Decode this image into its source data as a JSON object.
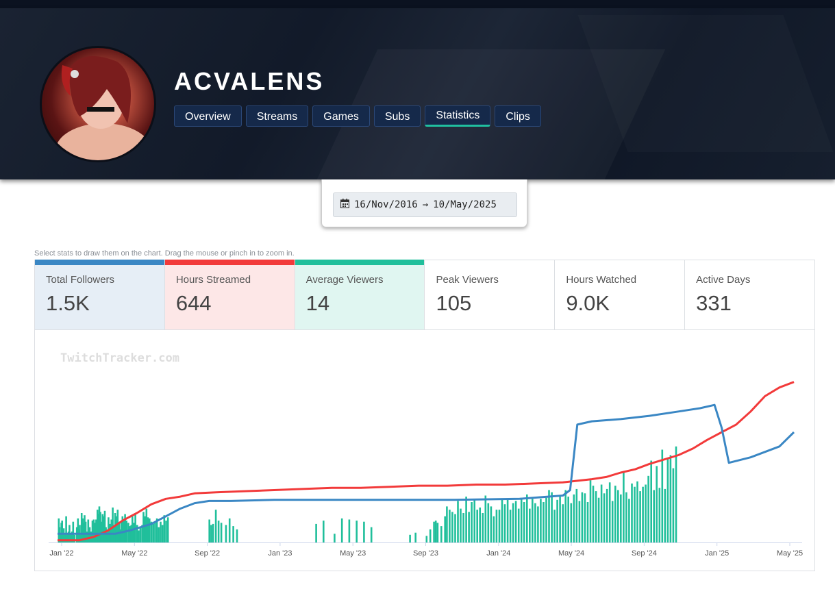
{
  "channel": {
    "name": "ACVALENS"
  },
  "nav": {
    "tabs": [
      "Overview",
      "Streams",
      "Games",
      "Subs",
      "Statistics",
      "Clips"
    ],
    "active": "Statistics"
  },
  "date_range": {
    "start": "16/Nov/2016",
    "arrow": "→",
    "end": "10/May/2025"
  },
  "hint": "Select stats to draw them on the chart. Drag the mouse or pinch in to zoom in.",
  "stats": [
    {
      "label": "Total Followers",
      "value": "1.5K",
      "color": "#3a87c4",
      "bg": "#e6eef6"
    },
    {
      "label": "Hours Streamed",
      "value": "644",
      "color": "#f23a3a",
      "bg": "#fde7e7"
    },
    {
      "label": "Average Viewers",
      "value": "14",
      "color": "#20bf9b",
      "bg": "#e0f6f1"
    },
    {
      "label": "Peak Viewers",
      "value": "105",
      "color": "",
      "bg": "#ffffff"
    },
    {
      "label": "Hours Watched",
      "value": "9.0K",
      "color": "",
      "bg": "#ffffff"
    },
    {
      "label": "Active Days",
      "value": "331",
      "color": "",
      "bg": "#ffffff"
    }
  ],
  "watermark": "TwitchTracker.com",
  "chart_data": {
    "type": "bar+line",
    "x_start": "2022-01",
    "x_end": "2025-05",
    "xtick_labels": [
      "Jan '22",
      "May '22",
      "Sep '22",
      "Jan '23",
      "May '23",
      "Sep '23",
      "Jan '24",
      "May '24",
      "Sep '24",
      "Jan '25",
      "May '25"
    ],
    "grid": false,
    "series": [
      {
        "kind": "bar",
        "color": "#20bf9b",
        "values_per_stream": [
          [
            0.02,
            22
          ],
          [
            0.06,
            14
          ],
          [
            0.12,
            9
          ],
          [
            0.16,
            18
          ],
          [
            0.2,
            20
          ],
          [
            0.25,
            11
          ],
          [
            0.29,
            13
          ],
          [
            0.35,
            8
          ],
          [
            0.42,
            24
          ],
          [
            0.48,
            8
          ],
          [
            0.55,
            10
          ],
          [
            0.6,
            16
          ],
          [
            0.65,
            8
          ],
          [
            0.74,
            10
          ],
          [
            0.8,
            19
          ],
          [
            0.88,
            7
          ],
          [
            1.0,
            14
          ],
          [
            1.06,
            22
          ],
          [
            1.1,
            12
          ],
          [
            1.16,
            16
          ],
          [
            1.2,
            7
          ],
          [
            1.26,
            27
          ],
          [
            1.32,
            22
          ],
          [
            1.38,
            18
          ],
          [
            1.42,
            25
          ],
          [
            1.48,
            19
          ],
          [
            1.55,
            10
          ],
          [
            1.62,
            21
          ],
          [
            1.7,
            14
          ],
          [
            1.78,
            10
          ],
          [
            1.85,
            20
          ],
          [
            1.92,
            21
          ],
          [
            1.98,
            18
          ],
          [
            2.05,
            21
          ],
          [
            2.12,
            30
          ],
          [
            2.17,
            26
          ],
          [
            2.22,
            33
          ],
          [
            2.28,
            28
          ],
          [
            2.34,
            19
          ],
          [
            2.4,
            26
          ],
          [
            2.46,
            24
          ],
          [
            2.52,
            29
          ],
          [
            2.58,
            14
          ],
          [
            2.65,
            12
          ],
          [
            2.72,
            23
          ],
          [
            2.8,
            17
          ],
          [
            2.88,
            21
          ],
          [
            2.95,
            32
          ],
          [
            3.02,
            16
          ],
          [
            3.08,
            27
          ],
          [
            3.16,
            24
          ],
          [
            3.22,
            30
          ],
          [
            3.3,
            18
          ],
          [
            3.36,
            12
          ],
          [
            3.42,
            19
          ],
          [
            3.48,
            24
          ],
          [
            3.55,
            21
          ],
          [
            3.62,
            26
          ],
          [
            3.7,
            20
          ],
          [
            3.8,
            18
          ],
          [
            3.88,
            15
          ],
          [
            3.96,
            16
          ],
          [
            4.02,
            24
          ],
          [
            4.1,
            18
          ],
          [
            4.18,
            27
          ],
          [
            4.28,
            16
          ],
          [
            4.36,
            11
          ],
          [
            4.45,
            14
          ],
          [
            4.55,
            16
          ],
          [
            4.62,
            28
          ],
          [
            4.7,
            24
          ],
          [
            4.78,
            31
          ],
          [
            4.86,
            23
          ],
          [
            4.95,
            22
          ],
          [
            5.05,
            19
          ],
          [
            5.15,
            17
          ],
          [
            5.25,
            19
          ],
          [
            5.35,
            22
          ],
          [
            5.45,
            14
          ],
          [
            5.55,
            19
          ],
          [
            5.65,
            16
          ],
          [
            5.75,
            25
          ],
          [
            5.85,
            20
          ],
          [
            5.95,
            23
          ],
          [
            8.2,
            21
          ],
          [
            8.3,
            16
          ],
          [
            8.4,
            17
          ],
          [
            8.55,
            30
          ],
          [
            8.7,
            20
          ],
          [
            8.85,
            18
          ],
          [
            9.1,
            16
          ],
          [
            9.3,
            22
          ],
          [
            9.5,
            15
          ],
          [
            9.7,
            12
          ],
          [
            14.0,
            17
          ],
          [
            14.4,
            20
          ],
          [
            15.0,
            8
          ],
          [
            15.4,
            22
          ],
          [
            15.8,
            21
          ],
          [
            16.2,
            20
          ],
          [
            16.6,
            19
          ],
          [
            17.0,
            14
          ],
          [
            19.1,
            7
          ],
          [
            19.4,
            9
          ],
          [
            20.0,
            6
          ],
          [
            20.2,
            12
          ],
          [
            20.4,
            19
          ],
          [
            20.5,
            20
          ],
          [
            20.6,
            18
          ],
          [
            20.8,
            15
          ],
          [
            21.0,
            24
          ],
          [
            21.1,
            33
          ],
          [
            21.25,
            30
          ],
          [
            21.4,
            28
          ],
          [
            21.55,
            26
          ],
          [
            21.7,
            38
          ],
          [
            21.85,
            31
          ],
          [
            22.0,
            27
          ],
          [
            22.15,
            42
          ],
          [
            22.3,
            28
          ],
          [
            22.45,
            37
          ],
          [
            22.6,
            39
          ],
          [
            22.75,
            30
          ],
          [
            22.9,
            32
          ],
          [
            23.05,
            27
          ],
          [
            23.2,
            43
          ],
          [
            23.35,
            36
          ],
          [
            23.5,
            33
          ],
          [
            23.65,
            24
          ],
          [
            23.8,
            30
          ],
          [
            23.95,
            30
          ],
          [
            24.1,
            39
          ],
          [
            24.25,
            35
          ],
          [
            24.4,
            40
          ],
          [
            24.55,
            30
          ],
          [
            24.7,
            36
          ],
          [
            24.85,
            38
          ],
          [
            25.0,
            31
          ],
          [
            25.15,
            41
          ],
          [
            25.3,
            37
          ],
          [
            25.45,
            44
          ],
          [
            25.6,
            31
          ],
          [
            25.75,
            40
          ],
          [
            25.9,
            36
          ],
          [
            26.05,
            33
          ],
          [
            26.2,
            40
          ],
          [
            26.35,
            37
          ],
          [
            26.5,
            41
          ],
          [
            26.65,
            48
          ],
          [
            26.8,
            46
          ],
          [
            26.95,
            30
          ],
          [
            27.1,
            39
          ],
          [
            27.25,
            42
          ],
          [
            27.4,
            35
          ],
          [
            27.55,
            48
          ],
          [
            27.7,
            42
          ],
          [
            27.85,
            36
          ],
          [
            28.0,
            44
          ],
          [
            28.15,
            49
          ],
          [
            28.3,
            38
          ],
          [
            28.45,
            46
          ],
          [
            28.6,
            45
          ],
          [
            28.75,
            37
          ],
          [
            28.9,
            57
          ],
          [
            29.05,
            52
          ],
          [
            29.2,
            47
          ],
          [
            29.35,
            41
          ],
          [
            29.5,
            53
          ],
          [
            29.65,
            45
          ],
          [
            29.8,
            49
          ],
          [
            29.95,
            55
          ],
          [
            30.1,
            38
          ],
          [
            30.25,
            52
          ],
          [
            30.4,
            48
          ],
          [
            30.55,
            44
          ],
          [
            30.7,
            64
          ],
          [
            30.85,
            46
          ],
          [
            31.0,
            40
          ],
          [
            31.15,
            54
          ],
          [
            31.3,
            51
          ],
          [
            31.45,
            56
          ],
          [
            31.6,
            47
          ],
          [
            31.75,
            51
          ],
          [
            31.9,
            53
          ],
          [
            32.05,
            61
          ],
          [
            32.2,
            75
          ],
          [
            32.35,
            48
          ],
          [
            32.5,
            70
          ],
          [
            32.65,
            50
          ],
          [
            32.8,
            85
          ],
          [
            32.95,
            49
          ],
          [
            33.1,
            77
          ],
          [
            33.25,
            80
          ],
          [
            33.4,
            68
          ],
          [
            33.55,
            88
          ]
        ]
      },
      {
        "kind": "line",
        "color": "#f23a3a",
        "points": [
          [
            0,
            2
          ],
          [
            3,
            2
          ],
          [
            5,
            5
          ],
          [
            7,
            11
          ],
          [
            9,
            20
          ],
          [
            11,
            27
          ],
          [
            13,
            35
          ],
          [
            15,
            40
          ],
          [
            17,
            42
          ],
          [
            19,
            45
          ],
          [
            22,
            46
          ],
          [
            26,
            47
          ],
          [
            30,
            48
          ],
          [
            34,
            49
          ],
          [
            38,
            50
          ],
          [
            42,
            50
          ],
          [
            46,
            51
          ],
          [
            50,
            52
          ],
          [
            54,
            52
          ],
          [
            58,
            53
          ],
          [
            62,
            53
          ],
          [
            66,
            54
          ],
          [
            70,
            55
          ],
          [
            74,
            58
          ],
          [
            76,
            60
          ],
          [
            78,
            64
          ],
          [
            80,
            67
          ],
          [
            82,
            72
          ],
          [
            84,
            76
          ],
          [
            86,
            80
          ],
          [
            88,
            86
          ],
          [
            90,
            94
          ],
          [
            92,
            101
          ],
          [
            94,
            108
          ],
          [
            96,
            120
          ],
          [
            98,
            134
          ],
          [
            100,
            142
          ],
          [
            102,
            147
          ]
        ]
      },
      {
        "kind": "line",
        "color": "#3a87c4",
        "points": [
          [
            0,
            8
          ],
          [
            8,
            8
          ],
          [
            10,
            11
          ],
          [
            13,
            17
          ],
          [
            15,
            24
          ],
          [
            17,
            31
          ],
          [
            19,
            36
          ],
          [
            21,
            38
          ],
          [
            24,
            38
          ],
          [
            30,
            39
          ],
          [
            40,
            39
          ],
          [
            55,
            39
          ],
          [
            64,
            40
          ],
          [
            70,
            43
          ],
          [
            71,
            48
          ],
          [
            72,
            108
          ],
          [
            74,
            111
          ],
          [
            78,
            113
          ],
          [
            82,
            116
          ],
          [
            86,
            120
          ],
          [
            89,
            123
          ],
          [
            91,
            126
          ],
          [
            92,
            105
          ],
          [
            93,
            73
          ],
          [
            96,
            78
          ],
          [
            100,
            88
          ],
          [
            102,
            101
          ]
        ]
      }
    ]
  }
}
